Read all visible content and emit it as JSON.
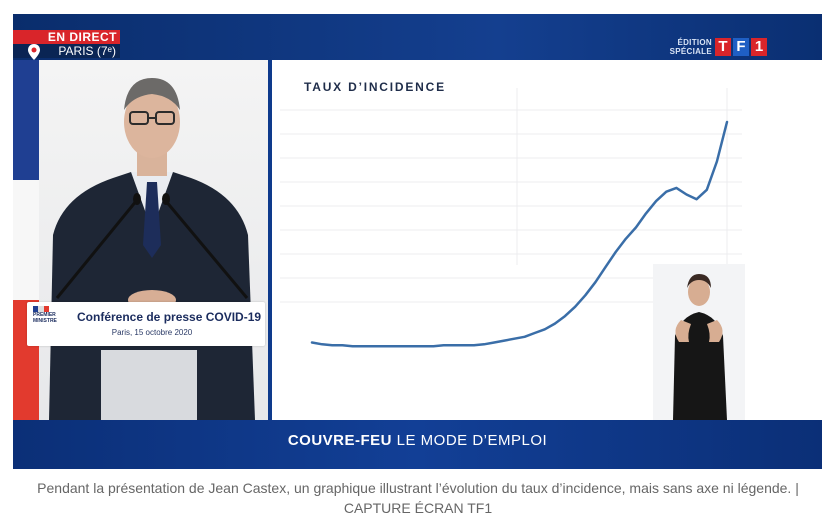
{
  "overlay": {
    "live_label": "EN DIRECT",
    "location": "PARIS (7ᵉ)",
    "edition_line1": "ÉDITION",
    "edition_line2": "SPÉCIALE",
    "logo_letters": [
      "T",
      "F",
      "1"
    ],
    "logo_colors": [
      "#d9252a",
      "#1f5fc4",
      "#d9252a"
    ]
  },
  "podium": {
    "ministry": "PREMIER MINISTRE",
    "event": "Conférence de presse COVID-19",
    "date": "Paris, 15 octobre 2020"
  },
  "chart": {
    "title": "TAUX D’INCIDENCE",
    "line_color": "#3a6ea8"
  },
  "chart_data": {
    "type": "line",
    "title": "TAUX D’INCIDENCE",
    "xlabel": "",
    "ylabel": "",
    "grid": true,
    "series": [
      {
        "values": [
          8,
          6,
          5,
          5,
          4,
          4,
          4,
          4,
          4,
          4,
          4,
          4,
          4,
          5,
          5,
          5,
          5,
          6,
          8,
          10,
          12,
          14,
          18,
          22,
          28,
          36,
          46,
          58,
          72,
          88,
          104,
          118,
          130,
          145,
          158,
          168,
          172,
          165,
          160,
          170,
          200,
          242
        ]
      }
    ]
  },
  "banner": {
    "strong": "COUVRE-FEU",
    "rest": "LE MODE D’EMPLOI"
  },
  "caption": "Pendant la présentation de Jean Castex, un graphique illustrant l’évolution du taux d’incidence, mais sans axe ni légende. | CAPTURE ÉCRAN TF1"
}
